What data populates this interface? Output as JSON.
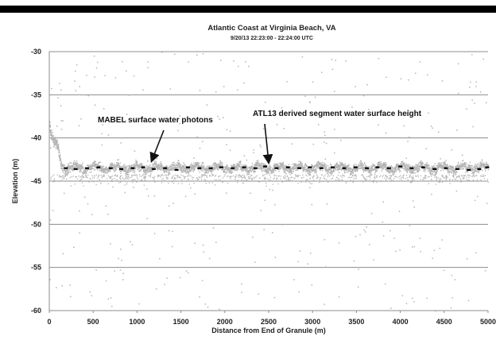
{
  "chart_data": {
    "type": "scatter",
    "title": "Atlantic Coast at Virginia Beach, VA",
    "subtitle": "9/20/13 22:23:00 - 22:24:00 UTC",
    "xlabel": "Distance from End of Granule (m)",
    "ylabel": "Elevation (m)",
    "xlim": [
      0,
      5000
    ],
    "ylim": [
      -60,
      -30
    ],
    "x_ticks": [
      0,
      500,
      1000,
      1500,
      2000,
      2500,
      3000,
      3500,
      4000,
      4500,
      5000
    ],
    "y_ticks": [
      -30,
      -35,
      -40,
      -45,
      -50,
      -55,
      -60
    ],
    "grid": true,
    "colors": {
      "photons": "#b4b4b4",
      "segments": "#000000",
      "gridline": "#8c8c8c",
      "header_bar": "#000000"
    },
    "series": [
      {
        "name": "MABEL surface water photons",
        "style": "gray points",
        "profile": [
          {
            "x": 0,
            "y": -38.3
          },
          {
            "x": 10,
            "y": -39.6
          },
          {
            "x": 30,
            "y": -40.2
          },
          {
            "x": 60,
            "y": -40.6
          },
          {
            "x": 90,
            "y": -41.1
          },
          {
            "x": 110,
            "y": -41.8
          },
          {
            "x": 130,
            "y": -42.9
          },
          {
            "x": 150,
            "y": -43.4
          },
          {
            "x": 5000,
            "y": -43.4
          }
        ]
      },
      {
        "name": "ATL13 derived segment water surface height",
        "style": "black dashes",
        "x": [
          190,
          300,
          430,
          560,
          700,
          820,
          950,
          1070,
          1190,
          1320,
          1450,
          1580,
          1710,
          1840,
          1960,
          2090,
          2220,
          2350,
          2460,
          2590,
          2720,
          2850,
          2970,
          3100,
          3230,
          3360,
          3490,
          3620,
          3740,
          3870,
          4000,
          4130,
          4260,
          4390,
          4520,
          4650,
          4780,
          4900,
          4990
        ],
        "y": [
          -43.5,
          -43.6,
          -43.5,
          -43.4,
          -43.5,
          -43.6,
          -43.5,
          -43.4,
          -43.6,
          -43.5,
          -43.7,
          -43.4,
          -43.5,
          -43.5,
          -43.4,
          -43.5,
          -43.4,
          -43.5,
          -43.3,
          -43.5,
          -43.4,
          -43.5,
          -43.4,
          -43.5,
          -43.4,
          -43.5,
          -43.4,
          -43.5,
          -43.4,
          -43.5,
          -43.3,
          -43.5,
          -43.4,
          -43.6,
          -43.5,
          -43.6,
          -43.7,
          -43.6,
          -43.4
        ]
      }
    ],
    "annotations": [
      {
        "text": "MABEL surface water photons",
        "points_to": {
          "x": 1180,
          "y": -42.7
        }
      },
      {
        "text": "ATL13 derived segment water surface height",
        "points_to": {
          "x": 2500,
          "y": -42.7
        }
      }
    ]
  }
}
